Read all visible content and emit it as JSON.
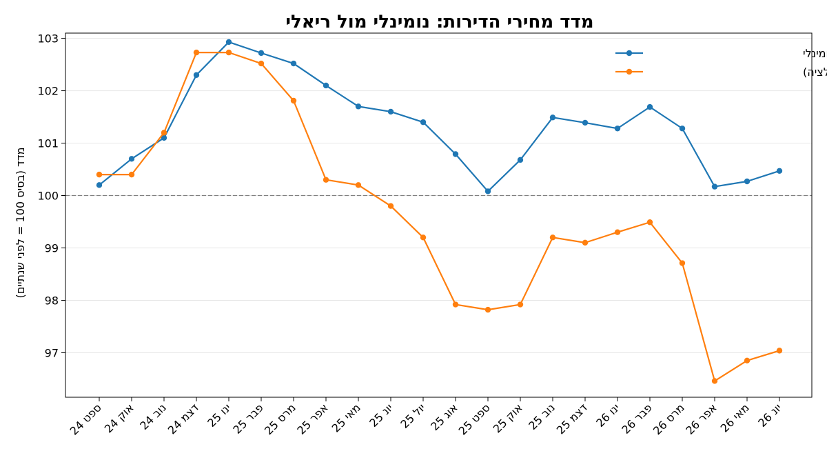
{
  "chart_data": {
    "type": "line",
    "title": "מדד מחירי הדירות: נומינלי מול ריאלי",
    "xlabel": "",
    "ylabel": "מדד (בסיס 100 = לפני שנתיים)",
    "categories": [
      "ספט 24",
      "אוק 24",
      "נוב 24",
      "דצמ 24",
      "ינו 25",
      "פבר 25",
      "מרס 25",
      "אפר 25",
      "מאי 25",
      "יונ 25",
      "יול 25",
      "אוג 25",
      "ספט 25",
      "אוק 25",
      "נוב 25",
      "דצמ 25",
      "ינו 26",
      "פבר 26",
      "מרס 26",
      "אפר 26",
      "מאי 26",
      "יונ 26"
    ],
    "series": [
      {
        "name": "מדד נומינלי",
        "color": "#1f77b4",
        "values": [
          100.2,
          100.7,
          101.1,
          102.3,
          102.93,
          102.72,
          102.52,
          102.1,
          101.7,
          101.6,
          101.4,
          100.79,
          100.08,
          100.68,
          101.49,
          101.39,
          101.28,
          101.69,
          101.28,
          100.17,
          100.27,
          100.47
        ]
      },
      {
        "name": "מדד ריאלי (בניכוי אינפלציה)",
        "color": "#ff7f0e",
        "values": [
          100.4,
          100.4,
          101.2,
          102.73,
          102.73,
          102.52,
          101.81,
          100.3,
          100.2,
          99.8,
          99.2,
          97.92,
          97.82,
          97.92,
          99.2,
          99.1,
          99.3,
          99.49,
          98.71,
          96.46,
          96.85,
          97.04
        ]
      }
    ],
    "yticks": [
      97,
      98,
      99,
      100,
      101,
      102,
      103
    ],
    "ylim": [
      96.15,
      103.1
    ],
    "reference_line": 100,
    "grid": "horizontal",
    "legend": "top-right"
  }
}
